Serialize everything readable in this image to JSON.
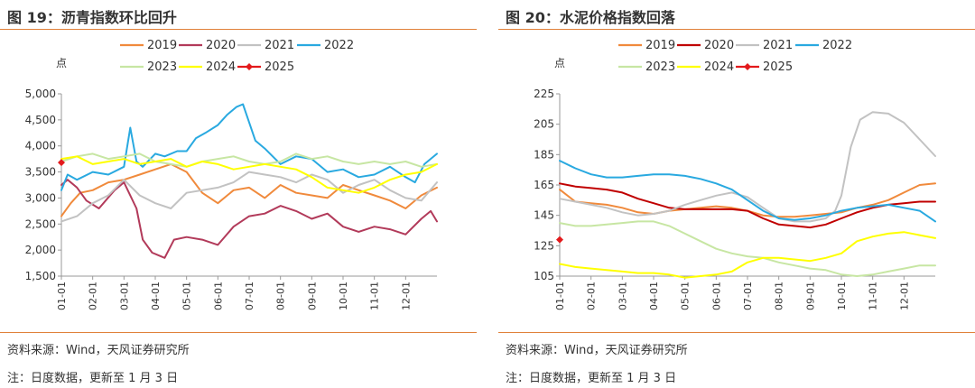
{
  "charts": [
    {
      "title": "图 19：沥青指数环比回升",
      "source": "资料来源：Wind，天风证券研究所",
      "note": "注：日度数据，更新至 1 月 3 日",
      "unit": "点",
      "chart_data": {
        "type": "line",
        "ylim": [
          1500,
          5000
        ],
        "yticks": [
          "5,000",
          "4,500",
          "4,000",
          "3,500",
          "3,000",
          "2,500",
          "2,000",
          "1,500"
        ],
        "ytick_values": [
          5000,
          4500,
          4000,
          3500,
          3000,
          2500,
          2000,
          1500
        ],
        "categories": [
          "01-01",
          "02-01",
          "03-01",
          "04-01",
          "05-01",
          "06-01",
          "07-01",
          "08-01",
          "09-01",
          "10-01",
          "11-01",
          "12-01"
        ],
        "xlim": [
          0,
          12
        ],
        "legend_placement": "top",
        "grid": false,
        "series": [
          {
            "name": "2019",
            "color": "#f08a3c",
            "x": [
              0,
              0.3,
              0.6,
              1,
              1.5,
              2,
              2.5,
              3,
              3.5,
              4,
              4.5,
              5,
              5.5,
              6,
              6.5,
              7,
              7.5,
              8,
              8.5,
              9,
              9.5,
              10,
              10.5,
              11,
              11.5,
              12
            ],
            "y": [
              2650,
              2900,
              3100,
              3150,
              3300,
              3350,
              3450,
              3550,
              3650,
              3500,
              3100,
              2900,
              3150,
              3200,
              3000,
              3250,
              3100,
              3050,
              3000,
              3250,
              3150,
              3050,
              2950,
              2800,
              3050,
              3200
            ]
          },
          {
            "name": "2020",
            "color": "#b23a5a",
            "x": [
              0,
              0.2,
              0.5,
              0.8,
              1.2,
              1.7,
              2,
              2.4,
              2.6,
              2.9,
              3.1,
              3.3,
              3.6,
              4,
              4.5,
              5,
              5.5,
              6,
              6.5,
              7,
              7.5,
              8,
              8.5,
              9,
              9.5,
              10,
              10.5,
              11,
              11.5,
              11.8,
              12
            ],
            "y": [
              3250,
              3350,
              3200,
              2950,
              2800,
              3150,
              3300,
              2800,
              2200,
              1950,
              1900,
              1850,
              2200,
              2250,
              2200,
              2100,
              2450,
              2650,
              2700,
              2850,
              2750,
              2600,
              2700,
              2450,
              2350,
              2450,
              2400,
              2300,
              2600,
              2750,
              2550
            ]
          },
          {
            "name": "2021",
            "color": "#c2c2c2",
            "x": [
              0,
              0.5,
              1,
              1.5,
              2,
              2.5,
              3,
              3.5,
              4,
              4.5,
              5,
              5.5,
              6,
              6.5,
              7,
              7.5,
              8,
              8.5,
              9,
              9.5,
              10,
              10.5,
              11,
              11.5,
              12
            ],
            "y": [
              2550,
              2650,
              2900,
              3050,
              3350,
              3050,
              2900,
              2800,
              3100,
              3150,
              3200,
              3300,
              3500,
              3450,
              3400,
              3300,
              3450,
              3350,
              3100,
              3250,
              3350,
              3150,
              3000,
              2950,
              3300
            ]
          },
          {
            "name": "2022",
            "color": "#29a9e0",
            "x": [
              0,
              0.2,
              0.5,
              1,
              1.5,
              2,
              2.2,
              2.4,
              2.6,
              3,
              3.3,
              3.7,
              4,
              4.3,
              4.6,
              5,
              5.3,
              5.6,
              5.8,
              6,
              6.2,
              6.5,
              7,
              7.5,
              8,
              8.5,
              9,
              9.5,
              10,
              10.5,
              11,
              11.3,
              11.6,
              12
            ],
            "y": [
              3150,
              3450,
              3350,
              3500,
              3450,
              3600,
              4350,
              3700,
              3600,
              3850,
              3800,
              3900,
              3900,
              4150,
              4250,
              4400,
              4600,
              4750,
              4800,
              4450,
              4100,
              3950,
              3650,
              3800,
              3750,
              3500,
              3550,
              3400,
              3450,
              3600,
              3400,
              3300,
              3650,
              3850
            ]
          },
          {
            "name": "2023",
            "color": "#c7e6a3",
            "x": [
              0,
              0.5,
              1,
              1.5,
              2,
              2.5,
              3,
              3.5,
              4,
              4.5,
              5,
              5.5,
              6,
              6.5,
              7,
              7.5,
              8,
              8.5,
              9,
              9.5,
              10,
              10.5,
              11,
              11.5,
              12
            ],
            "y": [
              3700,
              3800,
              3850,
              3750,
              3800,
              3850,
              3700,
              3650,
              3600,
              3700,
              3750,
              3800,
              3700,
              3650,
              3700,
              3850,
              3750,
              3800,
              3700,
              3650,
              3700,
              3650,
              3700,
              3600,
              3650
            ]
          },
          {
            "name": "2024",
            "color": "#ffff00",
            "x": [
              0,
              0.5,
              1,
              1.5,
              2,
              2.5,
              3,
              3.5,
              4,
              4.5,
              5,
              5.5,
              6,
              6.5,
              7,
              7.5,
              8,
              8.5,
              9,
              9.5,
              10,
              10.5,
              11,
              11.5,
              12
            ],
            "y": [
              3750,
              3800,
              3650,
              3700,
              3750,
              3650,
              3700,
              3750,
              3600,
              3700,
              3650,
              3550,
              3600,
              3650,
              3600,
              3550,
              3400,
              3200,
              3150,
              3100,
              3200,
              3350,
              3450,
              3500,
              3650
            ]
          },
          {
            "name": "2025",
            "color": "#e31a1c",
            "x": [
              0
            ],
            "y": [
              3680
            ],
            "marker": true
          }
        ]
      }
    },
    {
      "title": "图 20：水泥价格指数回落",
      "source": "资料来源：Wind，天风证券研究所",
      "note": "注：日度数据，更新至 1 月 3 日",
      "unit": "点",
      "chart_data": {
        "type": "line",
        "ylim": [
          105,
          225
        ],
        "yticks": [
          "225",
          "205",
          "185",
          "165",
          "145",
          "125",
          "105"
        ],
        "ytick_values": [
          225,
          205,
          185,
          165,
          145,
          125,
          105
        ],
        "categories": [
          "01-01",
          "02-01",
          "03-01",
          "04-01",
          "05-01",
          "06-01",
          "07-01",
          "08-01",
          "09-01",
          "10-01",
          "11-01",
          "12-01"
        ],
        "xlim": [
          0,
          12
        ],
        "legend_placement": "top",
        "grid": false,
        "series": [
          {
            "name": "2019",
            "color": "#f08a3c",
            "x": [
              0,
              0.5,
              1,
              1.5,
              2,
              2.5,
              3,
              3.5,
              4,
              4.5,
              5,
              5.5,
              6,
              6.5,
              7,
              7.5,
              8,
              8.5,
              9,
              9.5,
              10,
              10.5,
              11,
              11.5,
              12
            ],
            "y": [
              162,
              154,
              153,
              152,
              150,
              147,
              146,
              148,
              149,
              150,
              151,
              150,
              148,
              145,
              144,
              144,
              145,
              146,
              147,
              150,
              152,
              155,
              160,
              165,
              166
            ]
          },
          {
            "name": "2020",
            "color": "#c00000",
            "x": [
              0,
              0.5,
              1,
              1.5,
              2,
              2.5,
              3,
              3.5,
              4,
              4.5,
              5,
              5.5,
              6,
              6.5,
              7,
              7.5,
              8,
              8.5,
              9,
              9.5,
              10,
              10.5,
              11,
              11.5,
              12
            ],
            "y": [
              166,
              164,
              163,
              162,
              160,
              156,
              153,
              150,
              149,
              149,
              149,
              149,
              148,
              143,
              139,
              138,
              137,
              139,
              143,
              147,
              150,
              152,
              153,
              154,
              154
            ]
          },
          {
            "name": "2021",
            "color": "#c2c2c2",
            "x": [
              0,
              0.5,
              1,
              1.5,
              2,
              2.5,
              3,
              3.5,
              4,
              4.5,
              5,
              5.5,
              6,
              6.5,
              7,
              7.5,
              8,
              8.5,
              8.8,
              9,
              9.3,
              9.6,
              10,
              10.5,
              11,
              11.5,
              12
            ],
            "y": [
              156,
              154,
              152,
              150,
              147,
              145,
              146,
              148,
              152,
              155,
              158,
              160,
              157,
              150,
              143,
              141,
              141,
              143,
              148,
              158,
              190,
              208,
              213,
              212,
              206,
              195,
              184
            ]
          },
          {
            "name": "2022",
            "color": "#29a9e0",
            "x": [
              0,
              0.5,
              1,
              1.5,
              2,
              2.5,
              3,
              3.5,
              4,
              4.5,
              5,
              5.5,
              6,
              6.5,
              7,
              7.5,
              8,
              8.5,
              9,
              9.5,
              10,
              10.5,
              11,
              11.5,
              12
            ],
            "y": [
              181,
              176,
              172,
              170,
              170,
              171,
              172,
              172,
              171,
              169,
              166,
              162,
              155,
              148,
              143,
              142,
              143,
              145,
              148,
              150,
              151,
              152,
              150,
              148,
              141
            ]
          },
          {
            "name": "2023",
            "color": "#c7e6a3",
            "x": [
              0,
              0.5,
              1,
              1.5,
              2,
              2.5,
              3,
              3.5,
              4,
              4.5,
              5,
              5.5,
              6,
              6.5,
              7,
              7.5,
              8,
              8.5,
              9,
              9.5,
              10,
              10.5,
              11,
              11.5,
              12
            ],
            "y": [
              140,
              138,
              138,
              139,
              140,
              141,
              141,
              138,
              133,
              128,
              123,
              120,
              118,
              117,
              114,
              112,
              110,
              109,
              106,
              105,
              106,
              108,
              110,
              112,
              112
            ]
          },
          {
            "name": "2024",
            "color": "#ffff00",
            "x": [
              0,
              0.5,
              1,
              1.5,
              2,
              2.5,
              3,
              3.5,
              4,
              4.5,
              5,
              5.5,
              6,
              6.5,
              7,
              7.5,
              8,
              8.5,
              9,
              9.5,
              10,
              10.5,
              11,
              11.5,
              12
            ],
            "y": [
              113,
              111,
              110,
              109,
              108,
              107,
              107,
              106,
              104,
              105,
              106,
              108,
              114,
              117,
              117,
              116,
              115,
              117,
              120,
              128,
              131,
              133,
              134,
              132,
              130
            ]
          },
          {
            "name": "2025",
            "color": "#e31a1c",
            "x": [
              0
            ],
            "y": [
              129
            ],
            "marker": true
          }
        ]
      }
    }
  ]
}
